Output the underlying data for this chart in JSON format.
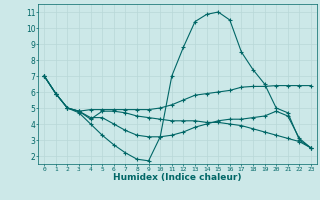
{
  "xlabel": "Humidex (Indice chaleur)",
  "ylabel": "",
  "bg_color": "#cce8e8",
  "grid_color": "#b8d8d8",
  "line_color": "#006666",
  "xlim": [
    -0.5,
    23.5
  ],
  "ylim": [
    1.5,
    11.5
  ],
  "xticks": [
    0,
    1,
    2,
    3,
    4,
    5,
    6,
    7,
    8,
    9,
    10,
    11,
    12,
    13,
    14,
    15,
    16,
    17,
    18,
    19,
    20,
    21,
    22,
    23
  ],
  "yticks": [
    2,
    3,
    4,
    5,
    6,
    7,
    8,
    9,
    10,
    11
  ],
  "lines": [
    {
      "x": [
        0,
        1,
        2,
        3,
        4,
        5,
        6,
        7,
        8,
        9,
        10,
        11,
        12,
        13,
        14,
        15,
        16,
        17,
        18,
        19,
        20,
        21,
        22,
        23
      ],
      "y": [
        7.0,
        5.9,
        5.0,
        4.8,
        4.9,
        4.9,
        4.9,
        4.9,
        4.9,
        4.9,
        5.0,
        5.2,
        5.5,
        5.8,
        5.9,
        6.0,
        6.1,
        6.3,
        6.35,
        6.35,
        6.4,
        6.4,
        6.4,
        6.4
      ]
    },
    {
      "x": [
        0,
        1,
        2,
        3,
        4,
        5,
        6,
        7,
        8,
        9,
        10,
        11,
        12,
        13,
        14,
        15,
        16,
        17,
        18,
        19,
        20,
        21,
        22,
        23
      ],
      "y": [
        7.0,
        5.9,
        5.0,
        4.7,
        4.0,
        3.3,
        2.7,
        2.2,
        1.8,
        1.7,
        3.2,
        7.0,
        8.8,
        10.4,
        10.85,
        11.0,
        10.5,
        8.5,
        7.4,
        6.5,
        5.0,
        4.7,
        3.0,
        2.5
      ]
    },
    {
      "x": [
        0,
        1,
        2,
        3,
        4,
        5,
        6,
        7,
        8,
        9,
        10,
        11,
        12,
        13,
        14,
        15,
        16,
        17,
        18,
        19,
        20,
        21,
        22,
        23
      ],
      "y": [
        7.0,
        5.9,
        5.0,
        4.8,
        4.4,
        4.4,
        4.0,
        3.6,
        3.3,
        3.2,
        3.2,
        3.3,
        3.5,
        3.8,
        4.0,
        4.2,
        4.3,
        4.3,
        4.4,
        4.5,
        4.8,
        4.5,
        3.1,
        2.5
      ]
    },
    {
      "x": [
        0,
        1,
        2,
        3,
        4,
        5,
        6,
        7,
        8,
        9,
        10,
        11,
        12,
        13,
        14,
        15,
        16,
        17,
        18,
        19,
        20,
        21,
        22,
        23
      ],
      "y": [
        7.0,
        5.9,
        5.0,
        4.8,
        4.3,
        4.8,
        4.8,
        4.7,
        4.5,
        4.4,
        4.3,
        4.2,
        4.2,
        4.2,
        4.1,
        4.1,
        4.0,
        3.9,
        3.7,
        3.5,
        3.3,
        3.1,
        2.9,
        2.5
      ]
    }
  ]
}
